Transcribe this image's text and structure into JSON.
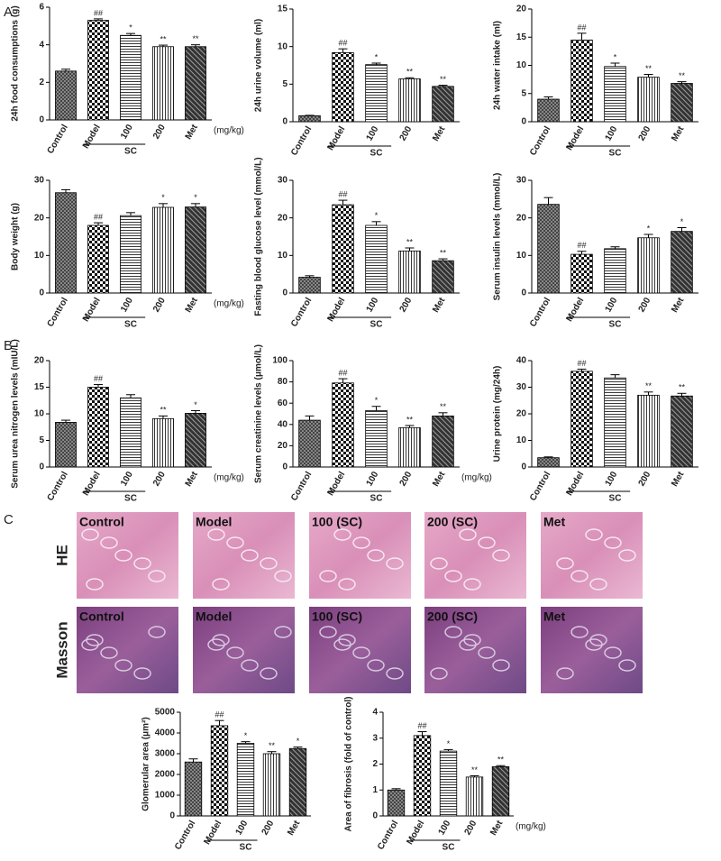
{
  "panels": [
    "A",
    "B",
    "C"
  ],
  "micrographs": {
    "rows": [
      "HE",
      "Masson"
    ],
    "columns": [
      "Control",
      "Model",
      "100 (SC)",
      "200 (SC)",
      "Met"
    ]
  },
  "chart_data": [
    {
      "type": "bar",
      "y_label": "24h food consumptions (g)",
      "categories": [
        "Control",
        "Model",
        "100",
        "200",
        "Met"
      ],
      "values": [
        2.6,
        5.3,
        4.5,
        3.9,
        3.9
      ],
      "errors": [
        0.1,
        0.08,
        0.1,
        0.08,
        0.1
      ],
      "annotations": [
        null,
        "##",
        "*",
        "**",
        "**"
      ],
      "group_label": "SC",
      "unit_label": "(mg/kg)",
      "ylim": [
        0,
        6
      ],
      "yticks": [
        0,
        2,
        4,
        6
      ]
    },
    {
      "type": "bar",
      "y_label": "24h urine volume (ml)",
      "categories": [
        "Control",
        "Model",
        "100",
        "200",
        "Met"
      ],
      "values": [
        0.8,
        9.2,
        7.6,
        5.7,
        4.7
      ],
      "errors": [
        0.05,
        0.5,
        0.2,
        0.15,
        0.15
      ],
      "annotations": [
        null,
        "##",
        "*",
        "**",
        "**"
      ],
      "group_label": "SC",
      "ylim": [
        0,
        15
      ],
      "yticks": [
        0,
        5,
        10,
        15
      ]
    },
    {
      "type": "bar",
      "y_label": "24h water intake (ml)",
      "categories": [
        "Control",
        "Model",
        "100",
        "200",
        "Met"
      ],
      "values": [
        4.0,
        14.5,
        9.8,
        7.9,
        6.8
      ],
      "errors": [
        0.4,
        1.2,
        0.6,
        0.5,
        0.3
      ],
      "annotations": [
        null,
        "##",
        "*",
        "**",
        "**"
      ],
      "group_label": "SC",
      "ylim": [
        0,
        20
      ],
      "yticks": [
        0,
        5,
        10,
        15,
        20
      ]
    },
    {
      "type": "bar",
      "y_label": "Body weight (g)",
      "categories": [
        "Control",
        "Model",
        "100",
        "200",
        "Met"
      ],
      "values": [
        26.7,
        18.0,
        20.6,
        22.8,
        22.9
      ],
      "errors": [
        0.8,
        0.7,
        0.8,
        1.0,
        0.9
      ],
      "annotations": [
        null,
        "##",
        null,
        "*",
        "*"
      ],
      "group_label": "SC",
      "unit_label": "(mg/kg)",
      "ylim": [
        0,
        30
      ],
      "yticks": [
        0,
        10,
        20,
        30
      ]
    },
    {
      "type": "bar",
      "y_label": "Fasting blood glucose level (mmol/L)",
      "categories": [
        "Control",
        "Model",
        "100",
        "200",
        "Met"
      ],
      "values": [
        4.2,
        23.5,
        18.0,
        11.2,
        8.6
      ],
      "errors": [
        0.4,
        1.2,
        1.0,
        0.8,
        0.5
      ],
      "annotations": [
        null,
        "##",
        "*",
        "**",
        "**"
      ],
      "group_label": "SC",
      "ylim": [
        0,
        30
      ],
      "yticks": [
        0,
        10,
        20,
        30
      ]
    },
    {
      "type": "bar",
      "y_label": "Serum insulin levels (mmol/L)",
      "categories": [
        "Control",
        "Model",
        "100",
        "200",
        "Met"
      ],
      "values": [
        23.6,
        10.3,
        11.8,
        14.7,
        16.4
      ],
      "errors": [
        1.8,
        0.8,
        0.5,
        0.9,
        1.0
      ],
      "annotations": [
        null,
        "##",
        null,
        "*",
        "*"
      ],
      "group_label": "SC",
      "ylim": [
        0,
        30
      ],
      "yticks": [
        0,
        10,
        20,
        30
      ]
    },
    {
      "type": "bar",
      "y_label": "Serum urea nitrogen levels (mIU/L)",
      "categories": [
        "Control",
        "Model",
        "100",
        "200",
        "Met"
      ],
      "values": [
        8.4,
        15.0,
        13.0,
        9.1,
        10.1
      ],
      "errors": [
        0.4,
        0.5,
        0.6,
        0.5,
        0.5
      ],
      "annotations": [
        null,
        "##",
        null,
        "**",
        "*"
      ],
      "group_label": "SC",
      "unit_label": "(mg/kg)",
      "ylim": [
        0,
        20
      ],
      "yticks": [
        0,
        5,
        10,
        15,
        20
      ]
    },
    {
      "type": "bar",
      "y_label": "Serum creatinine levels (μmol/L)",
      "categories": [
        "Control",
        "Model",
        "100",
        "200",
        "Met"
      ],
      "values": [
        44,
        79,
        53,
        37,
        48
      ],
      "errors": [
        4,
        4,
        4,
        2,
        3
      ],
      "annotations": [
        null,
        "##",
        "*",
        "**",
        "**"
      ],
      "group_label": "SC",
      "unit_label": "(mg/kg)",
      "ylim": [
        0,
        100
      ],
      "yticks": [
        0,
        20,
        40,
        60,
        80,
        100
      ]
    },
    {
      "type": "bar",
      "y_label": "Urine protein (mg/24h)",
      "categories": [
        "Control",
        "Model",
        "100",
        "200",
        "Met"
      ],
      "values": [
        3.5,
        36.0,
        33.5,
        27.0,
        26.7
      ],
      "errors": [
        0.3,
        0.8,
        1.2,
        1.2,
        1.0
      ],
      "annotations": [
        null,
        "##",
        null,
        "**",
        "**"
      ],
      "group_label": "SC",
      "ylim": [
        0,
        40
      ],
      "yticks": [
        0,
        10,
        20,
        30,
        40
      ]
    },
    {
      "type": "bar",
      "y_label": "Glomerular area (μm²)",
      "categories": [
        "Control",
        "Model",
        "100",
        "200",
        "Met"
      ],
      "values": [
        2600,
        4350,
        3500,
        3000,
        3250
      ],
      "errors": [
        150,
        250,
        80,
        100,
        70
      ],
      "annotations": [
        null,
        "##",
        "*",
        "**",
        "*"
      ],
      "group_label": "SC",
      "ylim": [
        0,
        5000
      ],
      "yticks": [
        0,
        1000,
        2000,
        3000,
        4000,
        5000
      ]
    },
    {
      "type": "bar",
      "y_label": "Area of fibrosis (fold of control)",
      "categories": [
        "Control",
        "Model",
        "100",
        "200",
        "Met"
      ],
      "values": [
        1.0,
        3.1,
        2.5,
        1.5,
        1.9
      ],
      "errors": [
        0.05,
        0.15,
        0.06,
        0.05,
        0.04
      ],
      "annotations": [
        null,
        "##",
        "*",
        "**",
        "**"
      ],
      "group_label": "SC",
      "unit_label": "(mg/kg)",
      "ylim": [
        0,
        4
      ],
      "yticks": [
        0,
        1,
        2,
        3,
        4
      ]
    }
  ]
}
